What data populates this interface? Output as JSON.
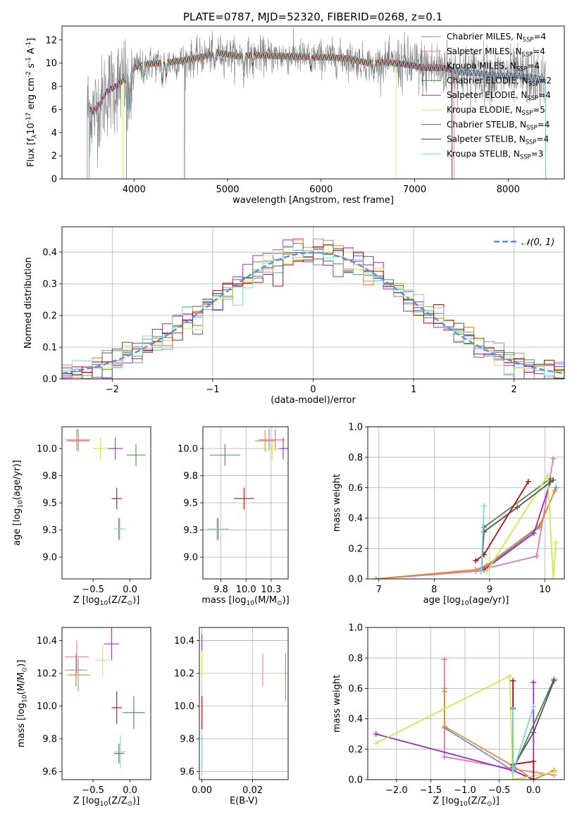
{
  "figure": {
    "title": "PLATE=0787, MJD=52320, FIBERID=0268, z=0.1"
  },
  "legend_names": {
    "spectrum": [
      "Chabrier MILES, N$_{SSP}$=4",
      "Salpeter MILES, N$_{SSP}$=4",
      "Kroupa MILES, N$_{SSP}$=4",
      "Chabrier ELODIE, N$_{SSP}$=2",
      "Salpeter ELODIE, N$_{SSP}$=4",
      "Kroupa ELODIE, N$_{SSP}$=5",
      "Chabrier STELIB, N$_{SSP}$=4",
      "Salpeter STELIB, N$_{SSP}$=4",
      "Kroupa STELIB, N$_{SSP}$=3"
    ],
    "normal": "𝒩(0, 1)"
  },
  "colors": {
    "Chabrier MILES": "#6a8fd8",
    "Salpeter MILES": "#e07ab0",
    "Kroupa MILES": "#e08a30",
    "Chabrier ELODIE": "#4e8a4e",
    "Salpeter ELODIE": "#9a30c0",
    "Kroupa ELODIE": "#d0e850",
    "Chabrier STELIB": "#555555",
    "Salpeter STELIB": "#b01010",
    "Kroupa STELIB": "#7fd8d8",
    "data": "#808080",
    "normal": "#5b8fd6"
  },
  "chart_data": [
    {
      "id": "spectrum",
      "type": "line",
      "xlabel": "wavelength [Angstrom, rest frame]",
      "ylabel": "Flux [f$_\\lambda$10$^{-17}$ erg cm$^{-2}$ s$^{-1}$ A$^{-1}$]",
      "xlim": [
        3230,
        8600
      ],
      "ylim": [
        0,
        13.2
      ],
      "xticks": [
        4000,
        5000,
        6000,
        7000,
        8000
      ],
      "yticks": [
        0,
        2,
        4,
        6,
        8,
        10,
        12
      ],
      "grid": false,
      "legend": "right",
      "data_series_color": "#808080",
      "continuum": {
        "x": [
          3500,
          3560,
          3650,
          3700,
          3800,
          3900,
          3950,
          4000,
          4100,
          4300,
          4500,
          4700,
          4900,
          5100,
          5300,
          5500,
          5700,
          5900,
          6100,
          6300,
          6500,
          6700,
          6900,
          7100,
          7300,
          7500,
          7700,
          7900,
          8100,
          8300,
          8400
        ],
        "y": [
          6.2,
          5.8,
          6.6,
          7.5,
          8.0,
          8.6,
          8.3,
          9.6,
          9.9,
          10.0,
          10.2,
          10.5,
          10.9,
          10.6,
          10.7,
          10.6,
          10.6,
          10.5,
          10.5,
          10.4,
          10.0,
          10.1,
          9.9,
          9.6,
          9.6,
          9.2,
          9.1,
          8.9,
          8.9,
          8.7,
          8.5
        ]
      }
    },
    {
      "id": "residuals",
      "type": "bar",
      "xlabel": "(data-model)/error",
      "ylabel": "Normed distribution",
      "xlim": [
        -2.5,
        2.5
      ],
      "ylim": [
        0,
        0.48
      ],
      "xticks": [
        -2,
        -1,
        0,
        1,
        2
      ],
      "yticks": [
        0.0,
        0.1,
        0.2,
        0.3,
        0.4
      ],
      "grid": true,
      "legend": "top-right",
      "bins": {
        "start": -2.5,
        "width": 0.1
      }
    },
    {
      "id": "age-vs-Z",
      "type": "scatter",
      "xlabel": "Z [log$_{10}$(Z/Z$_\\odot$)]",
      "ylabel": "age  [log$_{10}$($age/yr$)]",
      "xlim": [
        -0.92,
        0.28
      ],
      "ylim": [
        8.8,
        10.2
      ],
      "xticks": [
        -0.5,
        0.0
      ],
      "yticks": [
        9.0,
        9.25,
        9.5,
        9.75,
        10.0
      ],
      "grid": false,
      "points": [
        {
          "series": "Chabrier MILES",
          "x": -0.72,
          "xerr": 0.15,
          "y": 10.08,
          "yerr": 0.1
        },
        {
          "series": "Salpeter MILES",
          "x": -0.7,
          "xerr": 0.16,
          "y": 10.08,
          "yerr": 0.1
        },
        {
          "series": "Kroupa MILES",
          "x": -0.7,
          "xerr": 0.15,
          "y": 10.07,
          "yerr": 0.1
        },
        {
          "series": "Chabrier ELODIE",
          "x": 0.08,
          "xerr": 0.13,
          "y": 9.94,
          "yerr": 0.1
        },
        {
          "series": "Salpeter ELODIE",
          "x": -0.2,
          "xerr": 0.1,
          "y": 10.0,
          "yerr": 0.1
        },
        {
          "series": "Kroupa ELODIE",
          "x": -0.4,
          "xerr": 0.1,
          "y": 10.0,
          "yerr": 0.1
        },
        {
          "series": "Chabrier STELIB",
          "x": -0.15,
          "xerr": 0.07,
          "y": 9.26,
          "yerr": 0.1
        },
        {
          "series": "Salpeter STELIB",
          "x": -0.18,
          "xerr": 0.07,
          "y": 9.54,
          "yerr": 0.1
        },
        {
          "series": "Kroupa STELIB",
          "x": -0.14,
          "xerr": 0.08,
          "y": 9.26,
          "yerr": 0.1
        }
      ]
    },
    {
      "id": "age-vs-mass",
      "type": "scatter",
      "xlabel": "mass [log$_{10}$($M/M_\\odot$)]",
      "ylabel": "",
      "xlim": [
        9.57,
        10.42
      ],
      "ylim": [
        8.8,
        10.2
      ],
      "xticks": [
        9.75,
        10.0,
        10.25
      ],
      "yticks": [
        9.0,
        9.25,
        9.5,
        9.75,
        10.0
      ],
      "grid": true,
      "points": [
        {
          "series": "Chabrier MILES",
          "x": 10.23,
          "xerr": 0.1,
          "y": 10.08,
          "yerr": 0.1
        },
        {
          "series": "Salpeter MILES",
          "x": 10.29,
          "xerr": 0.1,
          "y": 10.08,
          "yerr": 0.1
        },
        {
          "series": "Kroupa MILES",
          "x": 10.19,
          "xerr": 0.1,
          "y": 10.07,
          "yerr": 0.1
        },
        {
          "series": "Chabrier ELODIE",
          "x": 9.79,
          "xerr": 0.15,
          "y": 9.94,
          "yerr": 0.1
        },
        {
          "series": "Salpeter ELODIE",
          "x": 10.37,
          "xerr": 0.07,
          "y": 10.0,
          "yerr": 0.1
        },
        {
          "series": "Kroupa ELODIE",
          "x": 10.26,
          "xerr": 0.07,
          "y": 10.0,
          "yerr": 0.1
        },
        {
          "series": "Chabrier STELIB",
          "x": 9.72,
          "xerr": 0.1,
          "y": 9.26,
          "yerr": 0.1
        },
        {
          "series": "Salpeter STELIB",
          "x": 9.98,
          "xerr": 0.1,
          "y": 9.54,
          "yerr": 0.1
        },
        {
          "series": "Kroupa STELIB",
          "x": 9.71,
          "xerr": 0.1,
          "y": 9.26,
          "yerr": 0.1
        }
      ]
    },
    {
      "id": "weight-vs-age",
      "type": "line",
      "xlabel": "age  [log$_{10}$($age/yr$)]",
      "ylabel": "mass weight",
      "xlim": [
        6.8,
        10.35
      ],
      "ylim": [
        0,
        1.0
      ],
      "xticks": [
        7,
        8,
        9,
        10
      ],
      "yticks": [
        0.0,
        0.2,
        0.4,
        0.6,
        0.8,
        1.0
      ],
      "grid": true,
      "series": [
        {
          "name": "Chabrier MILES",
          "x": [
            6.95,
            8.75,
            8.95,
            9.9,
            10.2
          ],
          "y": [
            0.0,
            0.06,
            0.08,
            0.34,
            0.6
          ]
        },
        {
          "name": "Salpeter MILES",
          "x": [
            6.95,
            8.75,
            8.95,
            9.85,
            10.15
          ],
          "y": [
            0.0,
            0.05,
            0.07,
            0.15,
            0.79
          ]
        },
        {
          "name": "Kroupa MILES",
          "x": [
            6.95,
            8.75,
            8.95,
            9.9,
            10.18
          ],
          "y": [
            0.0,
            0.06,
            0.09,
            0.35,
            0.58
          ]
        },
        {
          "name": "Chabrier ELODIE",
          "x": [
            8.9,
            10.1
          ],
          "y": [
            0.34,
            0.66
          ]
        },
        {
          "name": "Salpeter ELODIE",
          "x": [
            8.9,
            9.8,
            10.1
          ],
          "y": [
            0.06,
            0.3,
            0.64
          ]
        },
        {
          "name": "Kroupa ELODIE",
          "x": [
            8.95,
            10.05,
            10.15,
            10.2
          ],
          "y": [
            0.05,
            0.68,
            0.0,
            0.24
          ]
        },
        {
          "name": "Chabrier STELIB",
          "x": [
            8.85,
            8.9,
            9.5,
            10.15
          ],
          "y": [
            0.05,
            0.31,
            0.47,
            0.65
          ]
        },
        {
          "name": "Salpeter STELIB",
          "x": [
            8.75,
            8.9,
            9.7
          ],
          "y": [
            0.12,
            0.16,
            0.64
          ]
        },
        {
          "name": "Kroupa STELIB",
          "x": [
            8.85,
            8.9
          ],
          "y": [
            0.05,
            0.48
          ]
        }
      ]
    },
    {
      "id": "mass-vs-Z",
      "type": "scatter",
      "xlabel": "Z [log$_{10}$(Z/Z$_\\odot$)]",
      "ylabel": "mass [log$_{10}$($M/M_\\odot$)]",
      "xlim": [
        -0.92,
        0.28
      ],
      "ylim": [
        9.55,
        10.48
      ],
      "xticks": [
        -0.5,
        0.0
      ],
      "yticks": [
        9.6,
        9.8,
        10.0,
        10.2,
        10.4
      ],
      "grid": false,
      "points": [
        {
          "series": "Chabrier MILES",
          "x": -0.73,
          "xerr": 0.15,
          "y": 10.22,
          "yerr": 0.1
        },
        {
          "series": "Salpeter MILES",
          "x": -0.72,
          "xerr": 0.16,
          "y": 10.3,
          "yerr": 0.1
        },
        {
          "series": "Kroupa MILES",
          "x": -0.7,
          "xerr": 0.15,
          "y": 10.19,
          "yerr": 0.1
        },
        {
          "series": "Chabrier ELODIE",
          "x": 0.05,
          "xerr": 0.15,
          "y": 9.96,
          "yerr": 0.1
        },
        {
          "series": "Salpeter ELODIE",
          "x": -0.25,
          "xerr": 0.1,
          "y": 10.38,
          "yerr": 0.1
        },
        {
          "series": "Kroupa ELODIE",
          "x": -0.37,
          "xerr": 0.1,
          "y": 10.28,
          "yerr": 0.1
        },
        {
          "series": "Chabrier STELIB",
          "x": -0.15,
          "xerr": 0.07,
          "y": 9.71,
          "yerr": 0.06
        },
        {
          "series": "Salpeter STELIB",
          "x": -0.18,
          "xerr": 0.07,
          "y": 9.99,
          "yerr": 0.1
        },
        {
          "series": "Kroupa STELIB",
          "x": -0.13,
          "xerr": 0.08,
          "y": 9.72,
          "yerr": 0.1
        }
      ]
    },
    {
      "id": "mass-vs-EBV",
      "type": "scatter",
      "xlabel": "E(B-V)",
      "ylabel": "",
      "xlim": [
        -0.001,
        0.034
      ],
      "ylim": [
        9.55,
        10.48
      ],
      "xticks": [
        0.0,
        0.02
      ],
      "yticks": [
        9.6,
        9.8,
        10.0,
        10.2,
        10.4
      ],
      "grid": true,
      "points": [
        {
          "series": "Chabrier MILES",
          "x": 0.033,
          "xerr": 0,
          "y": 10.22,
          "yerr": 0.1
        },
        {
          "series": "Salpeter MILES",
          "x": 0.024,
          "xerr": 0,
          "y": 10.22,
          "yerr": 0.1
        },
        {
          "series": "Kroupa MILES",
          "x": 0.033,
          "xerr": 0,
          "y": 10.15,
          "yerr": 0.12
        },
        {
          "series": "Chabrier ELODIE",
          "x": 0.0,
          "xerr": 0,
          "y": 9.96,
          "yerr": 0.1
        },
        {
          "series": "Salpeter ELODIE",
          "x": 0.0,
          "xerr": 0,
          "y": 10.38,
          "yerr": 0.06
        },
        {
          "series": "Kroupa ELODIE",
          "x": 0.0,
          "xerr": 0,
          "y": 10.26,
          "yerr": 0.08
        },
        {
          "series": "Chabrier STELIB",
          "x": 0.0,
          "xerr": 0,
          "y": 9.72,
          "yerr": 0.1
        },
        {
          "series": "Salpeter STELIB",
          "x": 0.0,
          "xerr": 0,
          "y": 9.96,
          "yerr": 0.1
        },
        {
          "series": "Kroupa STELIB",
          "x": 0.0,
          "xerr": 0,
          "y": 9.72,
          "yerr": 0.1
        }
      ]
    },
    {
      "id": "weight-vs-Z",
      "type": "line",
      "xlabel": "Z [log$_{10}$(Z/Z$_\\odot$)]",
      "ylabel": "mass weight",
      "xlim": [
        -2.42,
        0.45
      ],
      "ylim": [
        0,
        1.0
      ],
      "xticks": [
        -2.0,
        -1.5,
        -1.0,
        -0.5,
        0.0
      ],
      "yticks": [
        0.0,
        0.2,
        0.4,
        0.6,
        0.8,
        1.0
      ],
      "grid": true,
      "series": [
        {
          "name": "Chabrier MILES",
          "x": [
            -1.3,
            -1.3,
            -0.3,
            0.0,
            0.3
          ],
          "y": [
            0.6,
            0.34,
            0.06,
            0.0,
            0.06
          ]
        },
        {
          "name": "Salpeter MILES",
          "x": [
            -1.3,
            -1.3,
            -0.3,
            0.0,
            0.3
          ],
          "y": [
            0.79,
            0.15,
            0.07,
            0.05,
            0.03
          ]
        },
        {
          "name": "Kroupa MILES",
          "x": [
            -1.3,
            -1.3,
            -0.3,
            0.0,
            0.3
          ],
          "y": [
            0.58,
            0.35,
            0.09,
            0.0,
            0.06
          ]
        },
        {
          "name": "Chabrier ELODIE",
          "x": [
            -0.3,
            0.3
          ],
          "y": [
            0.06,
            0.66
          ]
        },
        {
          "name": "Salpeter ELODIE",
          "x": [
            -2.3,
            -0.3,
            0.0,
            0.0
          ],
          "y": [
            0.3,
            0.06,
            0.0,
            0.64
          ]
        },
        {
          "name": "Kroupa ELODIE",
          "x": [
            -2.3,
            -0.35,
            -0.3,
            0.3
          ],
          "y": [
            0.24,
            0.68,
            0.0,
            0.05
          ]
        },
        {
          "name": "Chabrier STELIB",
          "x": [
            -0.3,
            -0.3,
            0.0,
            0.3
          ],
          "y": [
            0.47,
            0.08,
            0.31,
            0.65
          ]
        },
        {
          "name": "Salpeter STELIB",
          "x": [
            -0.3,
            -0.3,
            0.0,
            0.0
          ],
          "y": [
            0.65,
            0.1,
            0.12,
            0.0
          ]
        },
        {
          "name": "Kroupa STELIB",
          "x": [
            -0.3,
            -0.3,
            0.0
          ],
          "y": [
            0.46,
            0.05,
            0.48
          ]
        }
      ]
    }
  ]
}
